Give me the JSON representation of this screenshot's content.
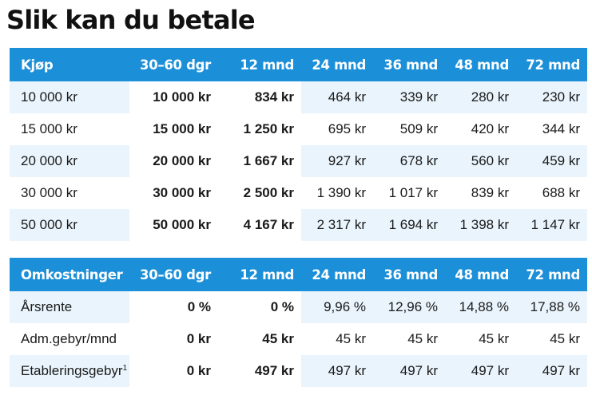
{
  "title": "Slik kan du betale",
  "purchase_table": {
    "headers": [
      "Kjøp",
      "30–60 dgr",
      "12 mnd",
      "24 mnd",
      "36 mnd",
      "48 mnd",
      "72 mnd"
    ],
    "rows": [
      [
        "10 000 kr",
        "10 000 kr",
        "834 kr",
        "464 kr",
        "339 kr",
        "280 kr",
        "230 kr"
      ],
      [
        "15 000 kr",
        "15 000 kr",
        "1 250 kr",
        "695 kr",
        "509 kr",
        "420 kr",
        "344 kr"
      ],
      [
        "20 000 kr",
        "20 000 kr",
        "1 667 kr",
        "927 kr",
        "678 kr",
        "560 kr",
        "459 kr"
      ],
      [
        "30 000 kr",
        "30 000 kr",
        "2 500 kr",
        "1 390 kr",
        "1 017 kr",
        "839 kr",
        "688 kr"
      ],
      [
        "50 000 kr",
        "50 000 kr",
        "4 167 kr",
        "2 317 kr",
        "1 694 kr",
        "1 398 kr",
        "1 147 kr"
      ]
    ]
  },
  "cost_table": {
    "headers": [
      "Omkostninger",
      "30–60 dgr",
      "12 mnd",
      "24 mnd",
      "36 mnd",
      "48 mnd",
      "72 mnd"
    ],
    "rows": [
      [
        "Årsrente",
        "0 %",
        "0 %",
        "9,96 %",
        "12,96 %",
        "14,88 %",
        "17,88 %"
      ],
      [
        "Adm.gebyr/mnd",
        "0 kr",
        "45 kr",
        "45 kr",
        "45 kr",
        "45 kr",
        "45 kr"
      ],
      [
        "Etableringsgebyr",
        "0 kr",
        "497 kr",
        "497 kr",
        "497 kr",
        "497 kr",
        "497 kr"
      ]
    ],
    "footnote_marker": "1"
  },
  "colors": {
    "header_bg": "#1c8fd9",
    "stripe_bg": "#e9f4fc"
  }
}
